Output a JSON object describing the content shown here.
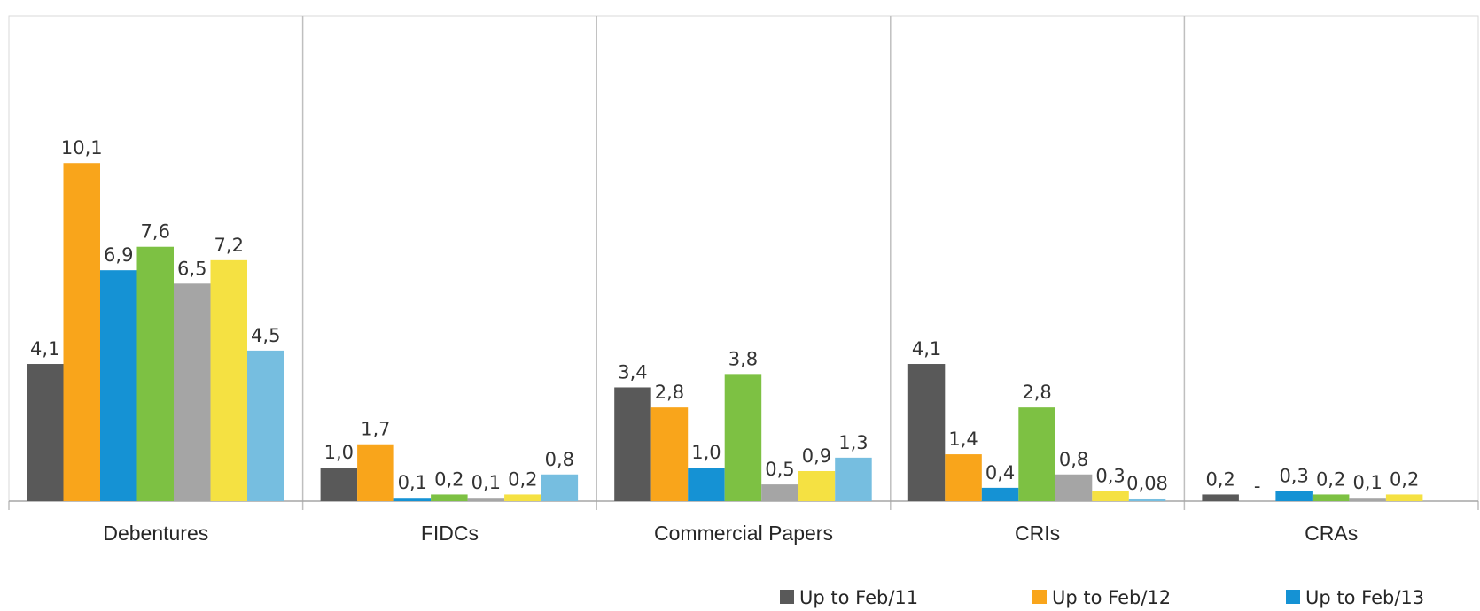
{
  "chart_data": {
    "type": "bar",
    "categories": [
      "Debentures",
      "FIDCs",
      "Commercial Papers",
      "CRIs",
      "CRAs"
    ],
    "series": [
      {
        "name": "Up to Feb/11",
        "color": "#595959",
        "values": [
          4.1,
          1.0,
          3.4,
          4.1,
          0.2
        ],
        "labels": [
          "4,1",
          "1,0",
          "3,4",
          "4,1",
          "0,2"
        ]
      },
      {
        "name": "Up to Feb/12",
        "color": "#F9A51B",
        "values": [
          10.1,
          1.7,
          2.8,
          1.4,
          0
        ],
        "labels": [
          "10,1",
          "1,7",
          "2,8",
          "1,4",
          "-"
        ]
      },
      {
        "name": "Up to Feb/13",
        "color": "#1592D4",
        "values": [
          6.9,
          0.1,
          1.0,
          0.4,
          0.3
        ],
        "labels": [
          "6,9",
          "0,1",
          "1,0",
          "0,4",
          "0,3"
        ]
      },
      {
        "name": "",
        "color": "#7DC143",
        "values": [
          7.6,
          0.2,
          3.8,
          2.8,
          0.2
        ],
        "labels": [
          "7,6",
          "0,2",
          "3,8",
          "2,8",
          "0,2"
        ]
      },
      {
        "name": "",
        "color": "#A5A5A5",
        "values": [
          6.5,
          0.1,
          0.5,
          0.8,
          0.1
        ],
        "labels": [
          "6,5",
          "0,1",
          "0,5",
          "0,8",
          "0,1"
        ]
      },
      {
        "name": "",
        "color": "#F5E142",
        "values": [
          7.2,
          0.2,
          0.9,
          0.3,
          0.2
        ],
        "labels": [
          "7,2",
          "0,2",
          "0,9",
          "0,3",
          "0,2"
        ]
      },
      {
        "name": "",
        "color": "#76BEE0",
        "values": [
          4.5,
          0.8,
          1.3,
          0.08,
          0
        ],
        "labels": [
          "4,5",
          "0,8",
          "1,3",
          "0,08",
          ""
        ]
      }
    ],
    "ylim": [
      0,
      12
    ],
    "title": "",
    "xlabel": "",
    "ylabel": "",
    "grid": false,
    "legend_placement": "bottom-right"
  }
}
